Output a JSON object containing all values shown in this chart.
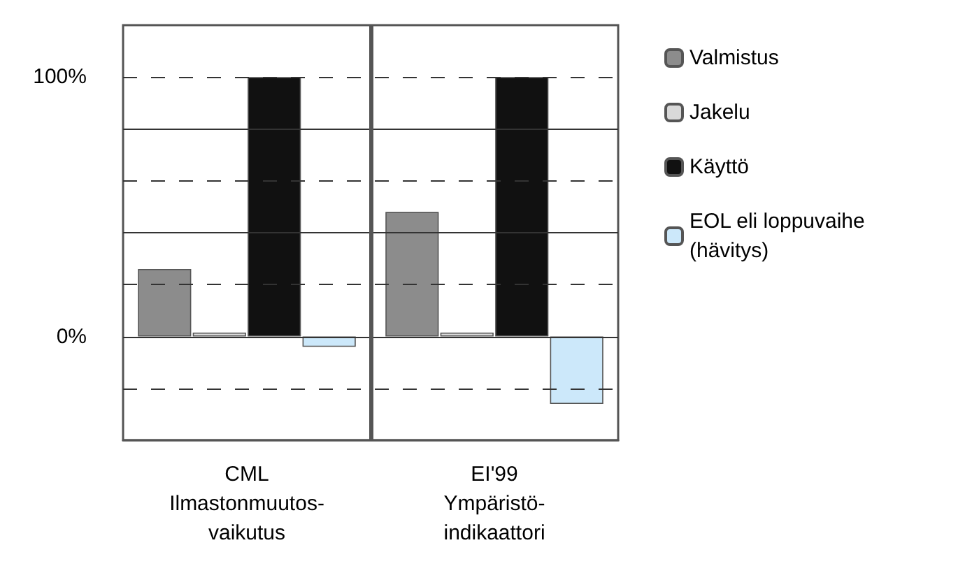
{
  "chart_data": {
    "type": "bar",
    "categories": [
      "CML\nIlmastonmuutos-\nvaikutus",
      "EI'99\nYmpäristö-\nindikaattori"
    ],
    "ylim": [
      -40,
      120
    ],
    "yticks": [
      {
        "value": -20,
        "label": null
      },
      {
        "value": 0,
        "label": "0%"
      },
      {
        "value": 20,
        "label": null
      },
      {
        "value": 40,
        "label": null
      },
      {
        "value": 60,
        "label": null
      },
      {
        "value": 80,
        "label": null
      },
      {
        "value": 100,
        "label": "100%"
      }
    ],
    "grid": true,
    "legend": "right",
    "series": [
      {
        "name": "Valmistus",
        "color": "#8c8c8c",
        "values": [
          26,
          48
        ]
      },
      {
        "name": "Jakelu",
        "color": "#d9d9d9",
        "values": [
          1.5,
          1.5
        ]
      },
      {
        "name": "Käyttö",
        "color": "#111111",
        "values": [
          100,
          100
        ]
      },
      {
        "name": "EOL eli loppuvaihe (hävitys)",
        "color": "#cce8fa",
        "values": [
          -4,
          -26
        ]
      }
    ]
  }
}
